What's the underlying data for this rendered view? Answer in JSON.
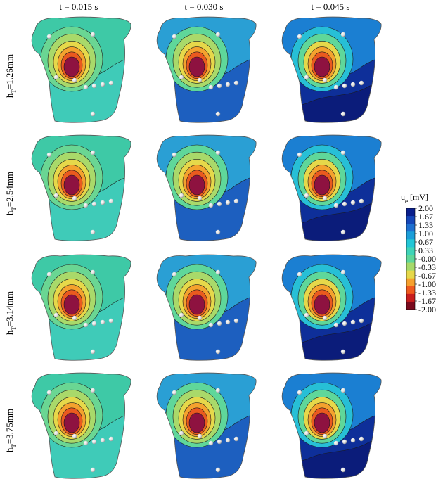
{
  "figure": {
    "column_titles": [
      "t = 0.015 s",
      "t = 0.030 s",
      "t = 0.045 s"
    ],
    "row_labels": [
      {
        "main": "h",
        "sub": "T",
        "rest": "=1.26mm"
      },
      {
        "main": "h",
        "sub": "T",
        "rest": "=2.54mm"
      },
      {
        "main": "h",
        "sub": "T",
        "rest": "=3.14mm"
      },
      {
        "main": "h",
        "sub": "T",
        "rest": "=3.75mm"
      }
    ],
    "colorbar": {
      "title_main": "u",
      "title_sub": "e",
      "title_unit": " [mV]",
      "ticks": [
        "2.00",
        "1.67",
        "1.33",
        "1.00",
        "0.67",
        "0.33",
        "-0.00",
        "-0.33",
        "-0.67",
        "-1.00",
        "-1.33",
        "-1.67",
        "-2.00"
      ],
      "colors": [
        "#0a1f8c",
        "#1546b8",
        "#1e6fd0",
        "#1b9ed9",
        "#22c6d6",
        "#3fd4b8",
        "#5fd79a",
        "#a6d96a",
        "#e6d84a",
        "#f6a02d",
        "#ef5a1e",
        "#c81e1e",
        "#7a0a1e"
      ]
    },
    "panel_palettes": [
      {
        "bg": "#3ec9a6",
        "lower": "#3fcbb8",
        "band1": "#6ad693",
        "band2": "#a9d96a",
        "band3": "#e6d84a",
        "band4": "#f4a22e",
        "band5": "#ea5a1f",
        "core": "#8e1240"
      },
      {
        "bg": "#2a9fd4",
        "lower": "#1d5fbf",
        "band1": "#5fd79a",
        "band2": "#a9d96a",
        "band3": "#e6d84a",
        "band4": "#f4a22e",
        "band5": "#ea5a1f",
        "core": "#8e1240"
      },
      {
        "bg": "#1b7fd2",
        "lower": "#0e2f99",
        "band1": "#27bfd6",
        "band2": "#5fd79a",
        "band3": "#e6d84a",
        "band4": "#f4a22e",
        "band5": "#ea5a1f",
        "core": "#8e1240"
      }
    ]
  }
}
